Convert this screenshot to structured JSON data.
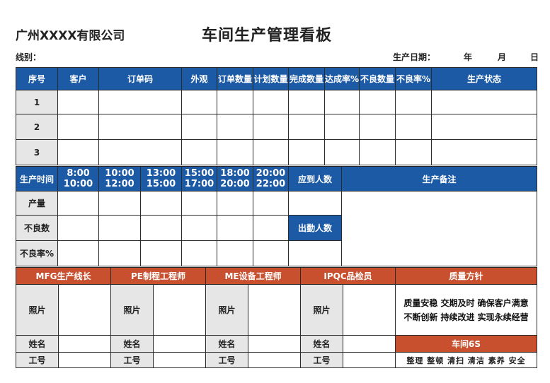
{
  "company": "广州XXXX有限公司",
  "title": "车间生产管理看板",
  "line_label": "线别：",
  "date_label": "生产日期：",
  "date_year": "年",
  "date_month": "月",
  "date_day": "日",
  "order_table": {
    "headers": [
      "序号",
      "客户",
      "订单码",
      "外观",
      "订单数量",
      "计划数量",
      "完成数量",
      "达成率%",
      "不良数量",
      "不良率%",
      "生产状态"
    ],
    "rows": [
      "1",
      "2",
      "3"
    ]
  },
  "production_table": {
    "time_label": "生产时间",
    "slots": [
      {
        "start": "8:00",
        "end": "10:00"
      },
      {
        "start": "10:00",
        "end": "12:00"
      },
      {
        "start": "13:00",
        "end": "15:00"
      },
      {
        "start": "15:00",
        "end": "17:00"
      },
      {
        "start": "18:00",
        "end": "20:00"
      },
      {
        "start": "20:00",
        "end": "22:00"
      }
    ],
    "expected_attendance": "应到人数",
    "remarks": "生产备注",
    "row_labels": [
      "产量",
      "不良数",
      "不良率%"
    ],
    "actual_attendance": "出勤人数"
  },
  "staff_table": {
    "roles": [
      "MFG生产线长",
      "PE制程工程师",
      "ME设备工程师",
      "IPQC品检员"
    ],
    "photo": "照片",
    "name": "姓名",
    "id": "工号",
    "quality_policy_title": "质量方针",
    "quality_policy_line1": "质量安稳  交期及时  确保客户满意",
    "quality_policy_line2": "不断创新  持续改进  实现永续经营",
    "workshop_6s_title": "车间6S",
    "workshop_6s_items": "整理  整顿  清扫  清洁  素养  安全"
  },
  "colors": {
    "header_blue": "#1c5aa6",
    "header_orange": "#c8502f",
    "label_grey": "#e6e6e6"
  }
}
